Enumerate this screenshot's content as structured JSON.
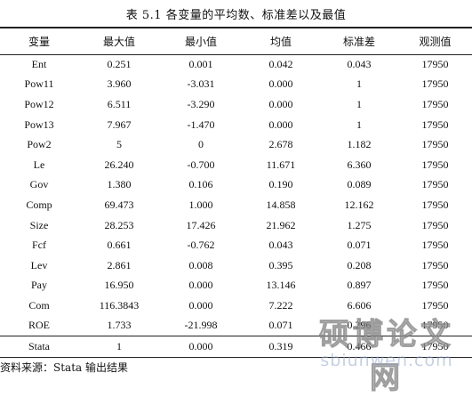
{
  "title": "表 5.1  各变量的平均数、标准差以及最值",
  "table": {
    "headers": [
      "变量",
      "最大值",
      "最小值",
      "均值",
      "标准差",
      "观测值"
    ],
    "rows": [
      [
        "Ent",
        "0.251",
        "0.001",
        "0.042",
        "0.043",
        "17950"
      ],
      [
        "Pow11",
        "3.960",
        "-3.031",
        "0.000",
        "1",
        "17950"
      ],
      [
        "Pow12",
        "6.511",
        "-3.290",
        "0.000",
        "1",
        "17950"
      ],
      [
        "Pow13",
        "7.967",
        "-1.470",
        "0.000",
        "1",
        "17950"
      ],
      [
        "Pow2",
        "5",
        "0",
        "2.678",
        "1.182",
        "17950"
      ],
      [
        "Le",
        "26.240",
        "-0.700",
        "11.671",
        "6.360",
        "17950"
      ],
      [
        "Gov",
        "1.380",
        "0.106",
        "0.190",
        "0.089",
        "17950"
      ],
      [
        "Comp",
        "69.473",
        "1.000",
        "14.858",
        "12.162",
        "17950"
      ],
      [
        "Size",
        "28.253",
        "17.426",
        "21.962",
        "1.275",
        "17950"
      ],
      [
        "Fcf",
        "0.661",
        "-0.762",
        "0.043",
        "0.071",
        "17950"
      ],
      [
        "Lev",
        "2.861",
        "0.008",
        "0.395",
        "0.208",
        "17950"
      ],
      [
        "Pay",
        "16.950",
        "0.000",
        "13.146",
        "0.897",
        "17950"
      ],
      [
        "Com",
        "116.3843",
        "0.000",
        "7.222",
        "6.606",
        "17950"
      ],
      [
        "ROE",
        "1.733",
        "-21.998",
        "0.071",
        "0.296",
        "17950"
      ]
    ],
    "footer_row": [
      "Stata",
      "1",
      "0.000",
      "0.319",
      "0.466",
      "17950"
    ]
  },
  "source_note": "资料来源：Stata  输出结果",
  "watermark": {
    "text": "硕博论文网",
    "url": "sbiunwen.com"
  }
}
